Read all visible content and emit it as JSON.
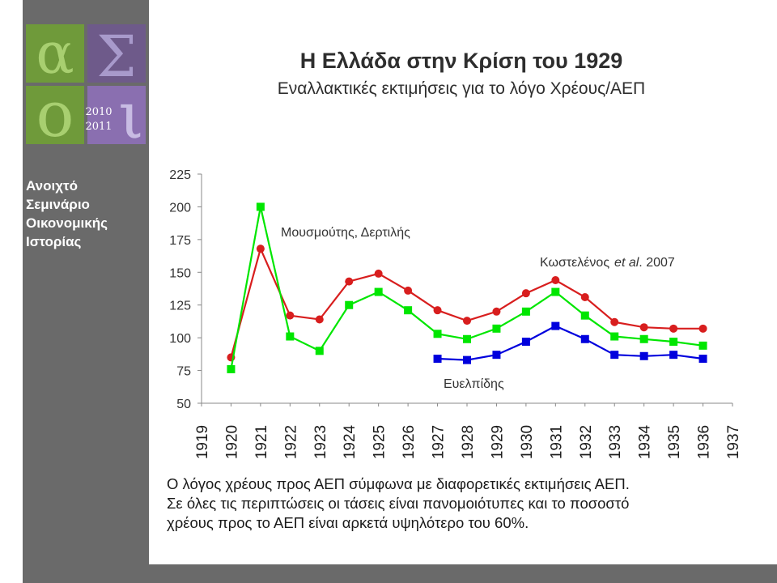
{
  "sidebar": {
    "logo": {
      "glyphs": [
        "α",
        "Σ",
        "ο",
        "ι"
      ],
      "years": [
        "2010",
        "2011"
      ],
      "colors": [
        "#7fb23f",
        "#8a6fb0"
      ]
    },
    "lines": [
      "Ανοιχτό",
      "Σεμινάριο",
      "Οικονομικής",
      "Ιστορίας"
    ]
  },
  "title": "Η Ελλάδα στην Κρίση του 1929",
  "subtitle": "Εναλλακτικές εκτιμήσεις για το λόγο Χρέους/ΑΕΠ",
  "chart_data": {
    "type": "line",
    "x": [
      1919,
      1920,
      1921,
      1922,
      1923,
      1924,
      1925,
      1926,
      1927,
      1928,
      1929,
      1930,
      1931,
      1932,
      1933,
      1934,
      1935,
      1936,
      1937
    ],
    "ylim": [
      50,
      225
    ],
    "yticks": [
      50,
      75,
      100,
      125,
      150,
      175,
      200,
      225
    ],
    "grid": false,
    "series": [
      {
        "name": "Μουσμούτης, Δερτιλής",
        "color": "#d81e1e",
        "marker": "circle",
        "values": [
          null,
          85,
          168,
          117,
          114,
          143,
          149,
          136,
          121,
          113,
          120,
          134,
          144,
          131,
          112,
          108,
          107,
          107,
          null
        ]
      },
      {
        "name": "Κωστελένος",
        "name_italic": "et al",
        "name_year": ". 2007",
        "color": "#00e600",
        "marker": "square",
        "values": [
          null,
          76,
          200,
          101,
          90,
          125,
          135,
          121,
          103,
          99,
          107,
          120,
          135,
          117,
          101,
          99,
          97,
          94,
          null
        ]
      },
      {
        "name": "Ευελπίδης",
        "color": "#0000dd",
        "marker": "square",
        "values": [
          null,
          null,
          null,
          null,
          null,
          null,
          null,
          null,
          84,
          83,
          87,
          97,
          109,
          99,
          87,
          86,
          87,
          84,
          null
        ]
      }
    ]
  },
  "caption": [
    "Ο λόγος χρέους προς ΑΕΠ σύμφωνα με διαφορετικές εκτιμήσεις ΑΕΠ.",
    "Σε όλες τις  περιπτώσεις οι τάσεις είναι πανομοιότυπες και το ποσοστό",
    "χρέους  προς το ΑΕΠ είναι αρκετά υψηλότερο του 60%."
  ]
}
